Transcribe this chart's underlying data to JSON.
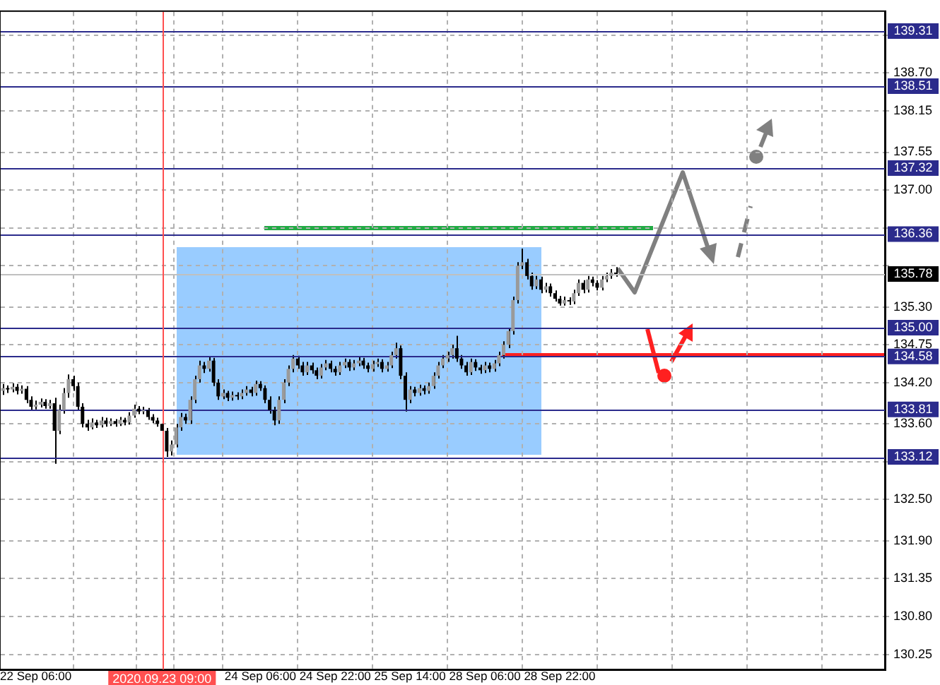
{
  "chart_data": {
    "type": "candlestick",
    "categories": [
      null,
      null,
      null,
      null,
      null,
      null,
      null,
      "22 Sep 06:00",
      null,
      null,
      null,
      null,
      null,
      null,
      null,
      null,
      null,
      null,
      null,
      null,
      null,
      null,
      null,
      null,
      null,
      null,
      null,
      null,
      null,
      null,
      null,
      null,
      null,
      null,
      "2020.09.23 09:00",
      null,
      null,
      null,
      null,
      null,
      null,
      null,
      null,
      null,
      null,
      null,
      null,
      null,
      null,
      null,
      null,
      null,
      null,
      null,
      null,
      "24 Sep 06:00",
      null,
      null,
      null,
      null,
      null,
      null,
      null,
      null,
      null,
      null,
      null,
      null,
      null,
      null,
      null,
      "24 Sep 22:00",
      null,
      null,
      null,
      null,
      null,
      null,
      null,
      null,
      null,
      null,
      null,
      null,
      null,
      null,
      null,
      "25 Sep 14:00",
      null,
      null,
      null,
      null,
      null,
      null,
      null,
      null,
      null,
      null,
      null,
      null,
      null,
      null,
      null,
      "28 Sep 06:00",
      null,
      null,
      null,
      null,
      null,
      null,
      null,
      null,
      null,
      null,
      null,
      null,
      null,
      null,
      null,
      "28 Sep 22:00",
      null,
      null,
      null,
      null,
      null,
      null,
      null,
      null,
      null,
      null,
      null,
      null,
      null,
      null,
      null,
      null,
      null,
      null,
      null,
      null,
      null,
      null,
      null,
      null,
      null,
      null,
      null,
      null,
      null,
      null,
      null,
      null,
      null,
      null,
      null,
      null,
      null,
      null,
      null,
      null,
      null,
      null,
      null,
      null,
      null,
      null,
      null,
      null,
      null,
      null,
      null,
      null,
      null,
      null,
      null,
      null,
      null,
      null,
      null,
      null,
      null,
      null,
      null,
      null,
      null,
      null,
      null,
      null,
      null
    ],
    "ohlc": [
      [
        134.08,
        134.18,
        134.02,
        134.12
      ],
      [
        134.12,
        134.16,
        134.05,
        134.1
      ],
      [
        134.1,
        134.19,
        134.06,
        134.14
      ],
      [
        134.14,
        134.18,
        134.03,
        134.08
      ],
      [
        134.08,
        134.16,
        134.04,
        134.11
      ],
      [
        134.11,
        134.15,
        133.9,
        133.95
      ],
      [
        133.95,
        134.0,
        133.8,
        133.85
      ],
      [
        133.85,
        133.94,
        133.81,
        133.88
      ],
      [
        133.88,
        133.97,
        133.84,
        133.92
      ],
      [
        133.92,
        133.96,
        133.82,
        133.86
      ],
      [
        133.86,
        133.95,
        133.82,
        133.9
      ],
      [
        133.9,
        133.98,
        133.02,
        133.5
      ],
      [
        133.5,
        133.88,
        133.45,
        133.8
      ],
      [
        133.8,
        134.12,
        133.75,
        134.05
      ],
      [
        134.05,
        134.32,
        133.98,
        134.25
      ],
      [
        134.25,
        134.3,
        134.08,
        134.15
      ],
      [
        134.15,
        134.2,
        133.8,
        133.85
      ],
      [
        133.85,
        133.9,
        133.55,
        133.6
      ],
      [
        133.6,
        133.66,
        133.5,
        133.55
      ],
      [
        133.55,
        133.68,
        133.52,
        133.62
      ],
      [
        133.62,
        133.66,
        133.54,
        133.58
      ],
      [
        133.58,
        133.7,
        133.55,
        133.65
      ],
      [
        133.65,
        133.69,
        133.56,
        133.6
      ],
      [
        133.6,
        133.68,
        133.57,
        133.64
      ],
      [
        133.64,
        133.67,
        133.56,
        133.6
      ],
      [
        133.6,
        133.7,
        133.57,
        133.66
      ],
      [
        133.66,
        133.69,
        133.58,
        133.62
      ],
      [
        133.62,
        133.77,
        133.59,
        133.72
      ],
      [
        133.72,
        133.88,
        133.69,
        133.82
      ],
      [
        133.82,
        133.86,
        133.74,
        133.78
      ],
      [
        133.78,
        133.85,
        133.74,
        133.8
      ],
      [
        133.8,
        133.83,
        133.66,
        133.7
      ],
      [
        133.7,
        133.74,
        133.61,
        133.65
      ],
      [
        133.65,
        133.69,
        133.56,
        133.6
      ],
      [
        133.6,
        133.64,
        133.45,
        133.5
      ],
      [
        133.5,
        133.54,
        133.12,
        133.2
      ],
      [
        133.2,
        133.36,
        133.14,
        133.3
      ],
      [
        133.3,
        133.6,
        133.26,
        133.55
      ],
      [
        133.55,
        133.76,
        133.5,
        133.7
      ],
      [
        133.7,
        133.75,
        133.6,
        133.65
      ],
      [
        133.65,
        134.0,
        133.6,
        133.95
      ],
      [
        133.95,
        134.3,
        133.9,
        134.25
      ],
      [
        134.25,
        134.52,
        134.2,
        134.45
      ],
      [
        134.45,
        134.5,
        134.34,
        134.4
      ],
      [
        134.4,
        134.58,
        134.36,
        134.52
      ],
      [
        134.52,
        134.56,
        134.15,
        134.2
      ],
      [
        134.2,
        134.25,
        133.95,
        134.0
      ],
      [
        134.0,
        134.1,
        133.96,
        134.05
      ],
      [
        134.05,
        134.08,
        133.93,
        133.98
      ],
      [
        133.98,
        134.07,
        133.94,
        134.02
      ],
      [
        134.02,
        134.06,
        133.95,
        134.0
      ],
      [
        134.0,
        134.1,
        133.96,
        134.05
      ],
      [
        134.05,
        134.15,
        134.01,
        134.1
      ],
      [
        134.1,
        134.14,
        134.0,
        134.05
      ],
      [
        134.05,
        134.23,
        134.01,
        134.18
      ],
      [
        134.18,
        134.22,
        134.08,
        134.12
      ],
      [
        134.12,
        134.16,
        133.9,
        133.95
      ],
      [
        133.95,
        134.0,
        133.75,
        133.8
      ],
      [
        133.8,
        133.85,
        133.58,
        133.65
      ],
      [
        133.65,
        134.0,
        133.6,
        133.95
      ],
      [
        133.95,
        134.25,
        133.9,
        134.2
      ],
      [
        134.2,
        134.45,
        134.15,
        134.4
      ],
      [
        134.4,
        134.6,
        134.35,
        134.55
      ],
      [
        134.55,
        134.59,
        134.4,
        134.45
      ],
      [
        134.45,
        134.5,
        134.3,
        134.35
      ],
      [
        134.35,
        134.5,
        134.31,
        134.45
      ],
      [
        134.45,
        134.49,
        134.33,
        134.38
      ],
      [
        134.38,
        134.42,
        134.25,
        134.3
      ],
      [
        134.3,
        134.47,
        134.26,
        134.42
      ],
      [
        134.42,
        134.53,
        134.38,
        134.48
      ],
      [
        134.48,
        134.52,
        134.35,
        134.4
      ],
      [
        134.4,
        134.44,
        134.3,
        134.35
      ],
      [
        134.35,
        134.5,
        134.31,
        134.45
      ],
      [
        134.45,
        134.55,
        134.41,
        134.5
      ],
      [
        134.5,
        134.54,
        134.37,
        134.42
      ],
      [
        134.42,
        134.53,
        134.38,
        134.48
      ],
      [
        134.48,
        134.57,
        134.44,
        134.52
      ],
      [
        134.52,
        134.56,
        134.4,
        134.45
      ],
      [
        134.45,
        134.49,
        134.35,
        134.4
      ],
      [
        134.4,
        134.52,
        134.36,
        134.47
      ],
      [
        134.47,
        134.55,
        134.43,
        134.5
      ],
      [
        134.5,
        134.54,
        134.35,
        134.4
      ],
      [
        134.4,
        134.5,
        134.36,
        134.45
      ],
      [
        134.45,
        134.65,
        134.41,
        134.6
      ],
      [
        134.6,
        134.78,
        134.55,
        134.7
      ],
      [
        134.7,
        134.74,
        134.25,
        134.3
      ],
      [
        134.3,
        134.35,
        133.78,
        133.95
      ],
      [
        133.95,
        134.15,
        133.9,
        134.1
      ],
      [
        134.1,
        134.14,
        134.0,
        134.05
      ],
      [
        134.05,
        134.17,
        134.01,
        134.12
      ],
      [
        134.12,
        134.16,
        134.03,
        134.08
      ],
      [
        134.08,
        134.2,
        134.04,
        134.15
      ],
      [
        134.15,
        134.35,
        134.11,
        134.3
      ],
      [
        134.3,
        134.5,
        134.26,
        134.45
      ],
      [
        134.45,
        134.6,
        134.41,
        134.55
      ],
      [
        134.55,
        134.65,
        134.5,
        134.6
      ],
      [
        134.6,
        134.75,
        134.55,
        134.7
      ],
      [
        134.7,
        134.88,
        134.5,
        134.55
      ],
      [
        134.55,
        134.6,
        134.4,
        134.45
      ],
      [
        134.45,
        134.5,
        134.3,
        134.35
      ],
      [
        134.35,
        134.55,
        134.31,
        134.5
      ],
      [
        134.5,
        134.54,
        134.37,
        134.42
      ],
      [
        134.42,
        134.46,
        134.33,
        134.38
      ],
      [
        134.38,
        134.5,
        134.34,
        134.45
      ],
      [
        134.45,
        134.49,
        134.35,
        134.4
      ],
      [
        134.4,
        134.53,
        134.36,
        134.48
      ],
      [
        134.48,
        134.65,
        134.44,
        134.6
      ],
      [
        134.6,
        134.8,
        134.55,
        134.75
      ],
      [
        134.75,
        135.0,
        134.7,
        134.95
      ],
      [
        134.95,
        135.45,
        134.9,
        135.4
      ],
      [
        135.4,
        135.95,
        135.35,
        135.9
      ],
      [
        135.9,
        136.15,
        135.85,
        135.95
      ],
      [
        135.95,
        136.0,
        135.7,
        135.75
      ],
      [
        135.75,
        135.8,
        135.55,
        135.6
      ],
      [
        135.6,
        135.75,
        135.56,
        135.7
      ],
      [
        135.7,
        135.74,
        135.5,
        135.55
      ],
      [
        135.55,
        135.65,
        135.51,
        135.6
      ],
      [
        135.6,
        135.64,
        135.45,
        135.5
      ],
      [
        135.5,
        135.54,
        135.38,
        135.42
      ],
      [
        135.42,
        135.46,
        135.32,
        135.35
      ],
      [
        135.35,
        135.45,
        135.32,
        135.4
      ],
      [
        135.4,
        135.44,
        135.33,
        135.38
      ],
      [
        135.38,
        135.55,
        135.34,
        135.5
      ],
      [
        135.5,
        135.7,
        135.46,
        135.65
      ],
      [
        135.65,
        135.69,
        135.5,
        135.55
      ],
      [
        135.55,
        135.75,
        135.51,
        135.7
      ],
      [
        135.7,
        135.74,
        135.6,
        135.65
      ],
      [
        135.65,
        135.69,
        135.54,
        135.58
      ],
      [
        135.58,
        135.75,
        135.54,
        135.7
      ],
      [
        135.7,
        135.8,
        135.66,
        135.75
      ],
      [
        135.75,
        135.85,
        135.71,
        135.8
      ],
      [
        135.8,
        135.88,
        135.74,
        135.78
      ],
      null,
      null,
      null,
      null,
      null,
      null,
      null,
      null,
      null,
      null,
      null,
      null,
      null,
      null,
      null,
      null,
      null,
      null,
      null,
      null,
      null,
      null,
      null,
      null,
      null,
      null,
      null,
      null,
      null,
      null,
      null,
      null,
      null,
      null,
      null,
      null,
      null,
      null,
      null,
      null,
      null,
      null,
      null,
      null,
      null,
      null,
      null,
      null,
      null,
      null,
      null,
      null,
      null,
      null,
      null,
      null,
      null
    ],
    "ylim": [
      130.03,
      139.59
    ],
    "yticks": [
      {
        "value": 130.25,
        "label": "130.25"
      },
      {
        "value": 130.8,
        "label": "130.80"
      },
      {
        "value": 131.35,
        "label": "131.35"
      },
      {
        "value": 131.9,
        "label": "131.90"
      },
      {
        "value": 132.5,
        "label": "132.50"
      },
      {
        "value": 133.05,
        "label": null
      },
      {
        "value": 133.6,
        "label": "133.60"
      },
      {
        "value": 134.2,
        "label": "134.20"
      },
      {
        "value": 134.75,
        "label": "134.75"
      },
      {
        "value": 135.3,
        "label": "135.30"
      },
      {
        "value": 135.9,
        "label": null
      },
      {
        "value": 136.45,
        "label": null
      },
      {
        "value": 137.0,
        "label": "137.00"
      },
      {
        "value": 137.55,
        "label": "137.55"
      },
      {
        "value": 138.15,
        "label": "138.15"
      },
      {
        "value": 138.7,
        "label": "138.70"
      },
      {
        "value": 139.25,
        "label": null
      }
    ],
    "ref_lines": [
      {
        "axis": "y",
        "value": 139.31,
        "label": "139.31",
        "color": "#2b2b8c"
      },
      {
        "axis": "y",
        "value": 138.51,
        "label": "138.51",
        "color": "#2b2b8c"
      },
      {
        "axis": "y",
        "value": 137.32,
        "label": "137.32",
        "color": "#2b2b8c"
      },
      {
        "axis": "y",
        "value": 136.36,
        "label": "136.36",
        "color": "#2b2b8c"
      },
      {
        "axis": "y",
        "value": 135.78,
        "label": "135.78",
        "color": "#c0c0c0"
      },
      {
        "axis": "y",
        "value": 135.0,
        "label": "135.00",
        "color": "#2b2b8c"
      },
      {
        "axis": "y",
        "value": 134.58,
        "label": "134.58",
        "color": "#2b2b8c"
      },
      {
        "axis": "y",
        "value": 133.81,
        "label": "133.81",
        "color": "#2b2b8c"
      },
      {
        "axis": "y",
        "value": 133.12,
        "label": "133.12",
        "color": "#2b2b8c"
      },
      {
        "axis": "x",
        "value": "2020.09.23 09:00",
        "color": "#ff5050"
      }
    ],
    "grid": true
  }
}
